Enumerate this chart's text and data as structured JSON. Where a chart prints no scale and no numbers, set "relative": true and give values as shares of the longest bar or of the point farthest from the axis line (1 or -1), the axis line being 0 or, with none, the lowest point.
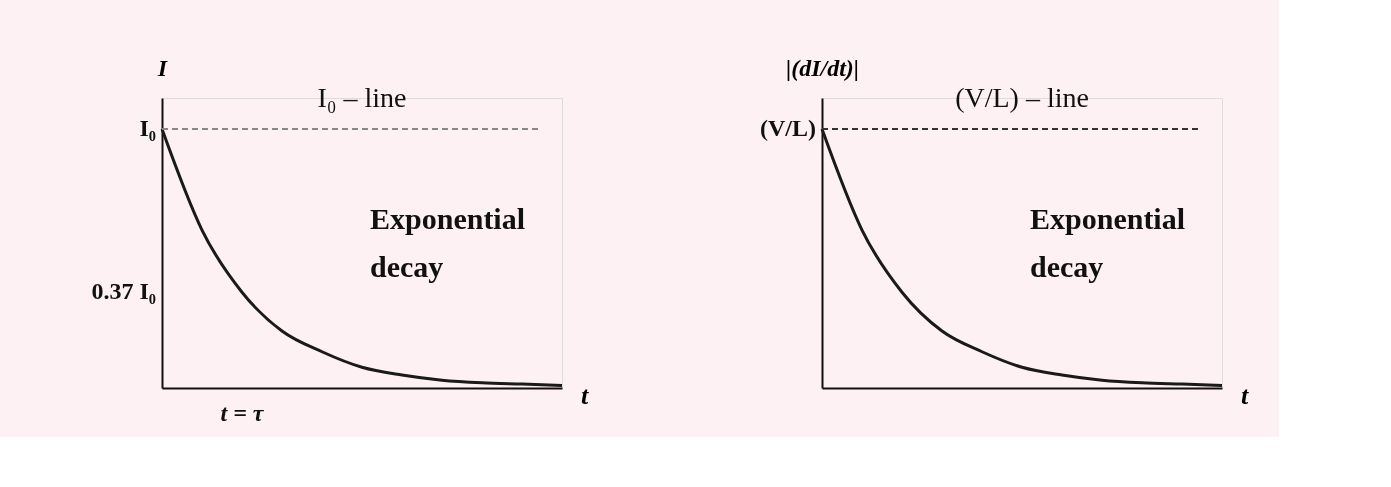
{
  "chart_data": [
    {
      "type": "line",
      "xlabel": "t",
      "ylabel": "I",
      "relative": true,
      "categories": [
        null,
        null,
        null,
        null,
        null,
        null,
        null,
        null,
        null,
        null,
        null
      ],
      "series": [
        {
          "color": "#1a1a1a",
          "values": [
            1,
            0.61,
            0.37,
            0.22,
            0.14,
            0.08,
            0.05,
            0.03,
            0.02,
            0.015,
            0.01
          ]
        }
      ],
      "ref_lines": [
        {
          "axis": "y",
          "value": 1,
          "label": "I₀ – line",
          "color": "#888888",
          "line_style": "dashed"
        }
      ],
      "annotations": [
        "Exponential decay",
        "t = τ",
        "I₀",
        "0.37 I₀"
      ]
    },
    {
      "type": "line",
      "xlabel": "t",
      "ylabel": "|(dI/dt)|",
      "relative": true,
      "categories": [
        null,
        null,
        null,
        null,
        null,
        null,
        null,
        null,
        null,
        null,
        null
      ],
      "series": [
        {
          "color": "#1a1a1a",
          "values": [
            1,
            0.61,
            0.37,
            0.22,
            0.14,
            0.08,
            0.05,
            0.03,
            0.02,
            0.015,
            0.01
          ]
        }
      ],
      "ref_lines": [
        {
          "axis": "y",
          "value": 1,
          "label": "(V/L) – line",
          "color": "#333333",
          "line_style": "dashed"
        }
      ],
      "annotations": [
        "Exponential decay",
        "(V/L)"
      ]
    }
  ]
}
